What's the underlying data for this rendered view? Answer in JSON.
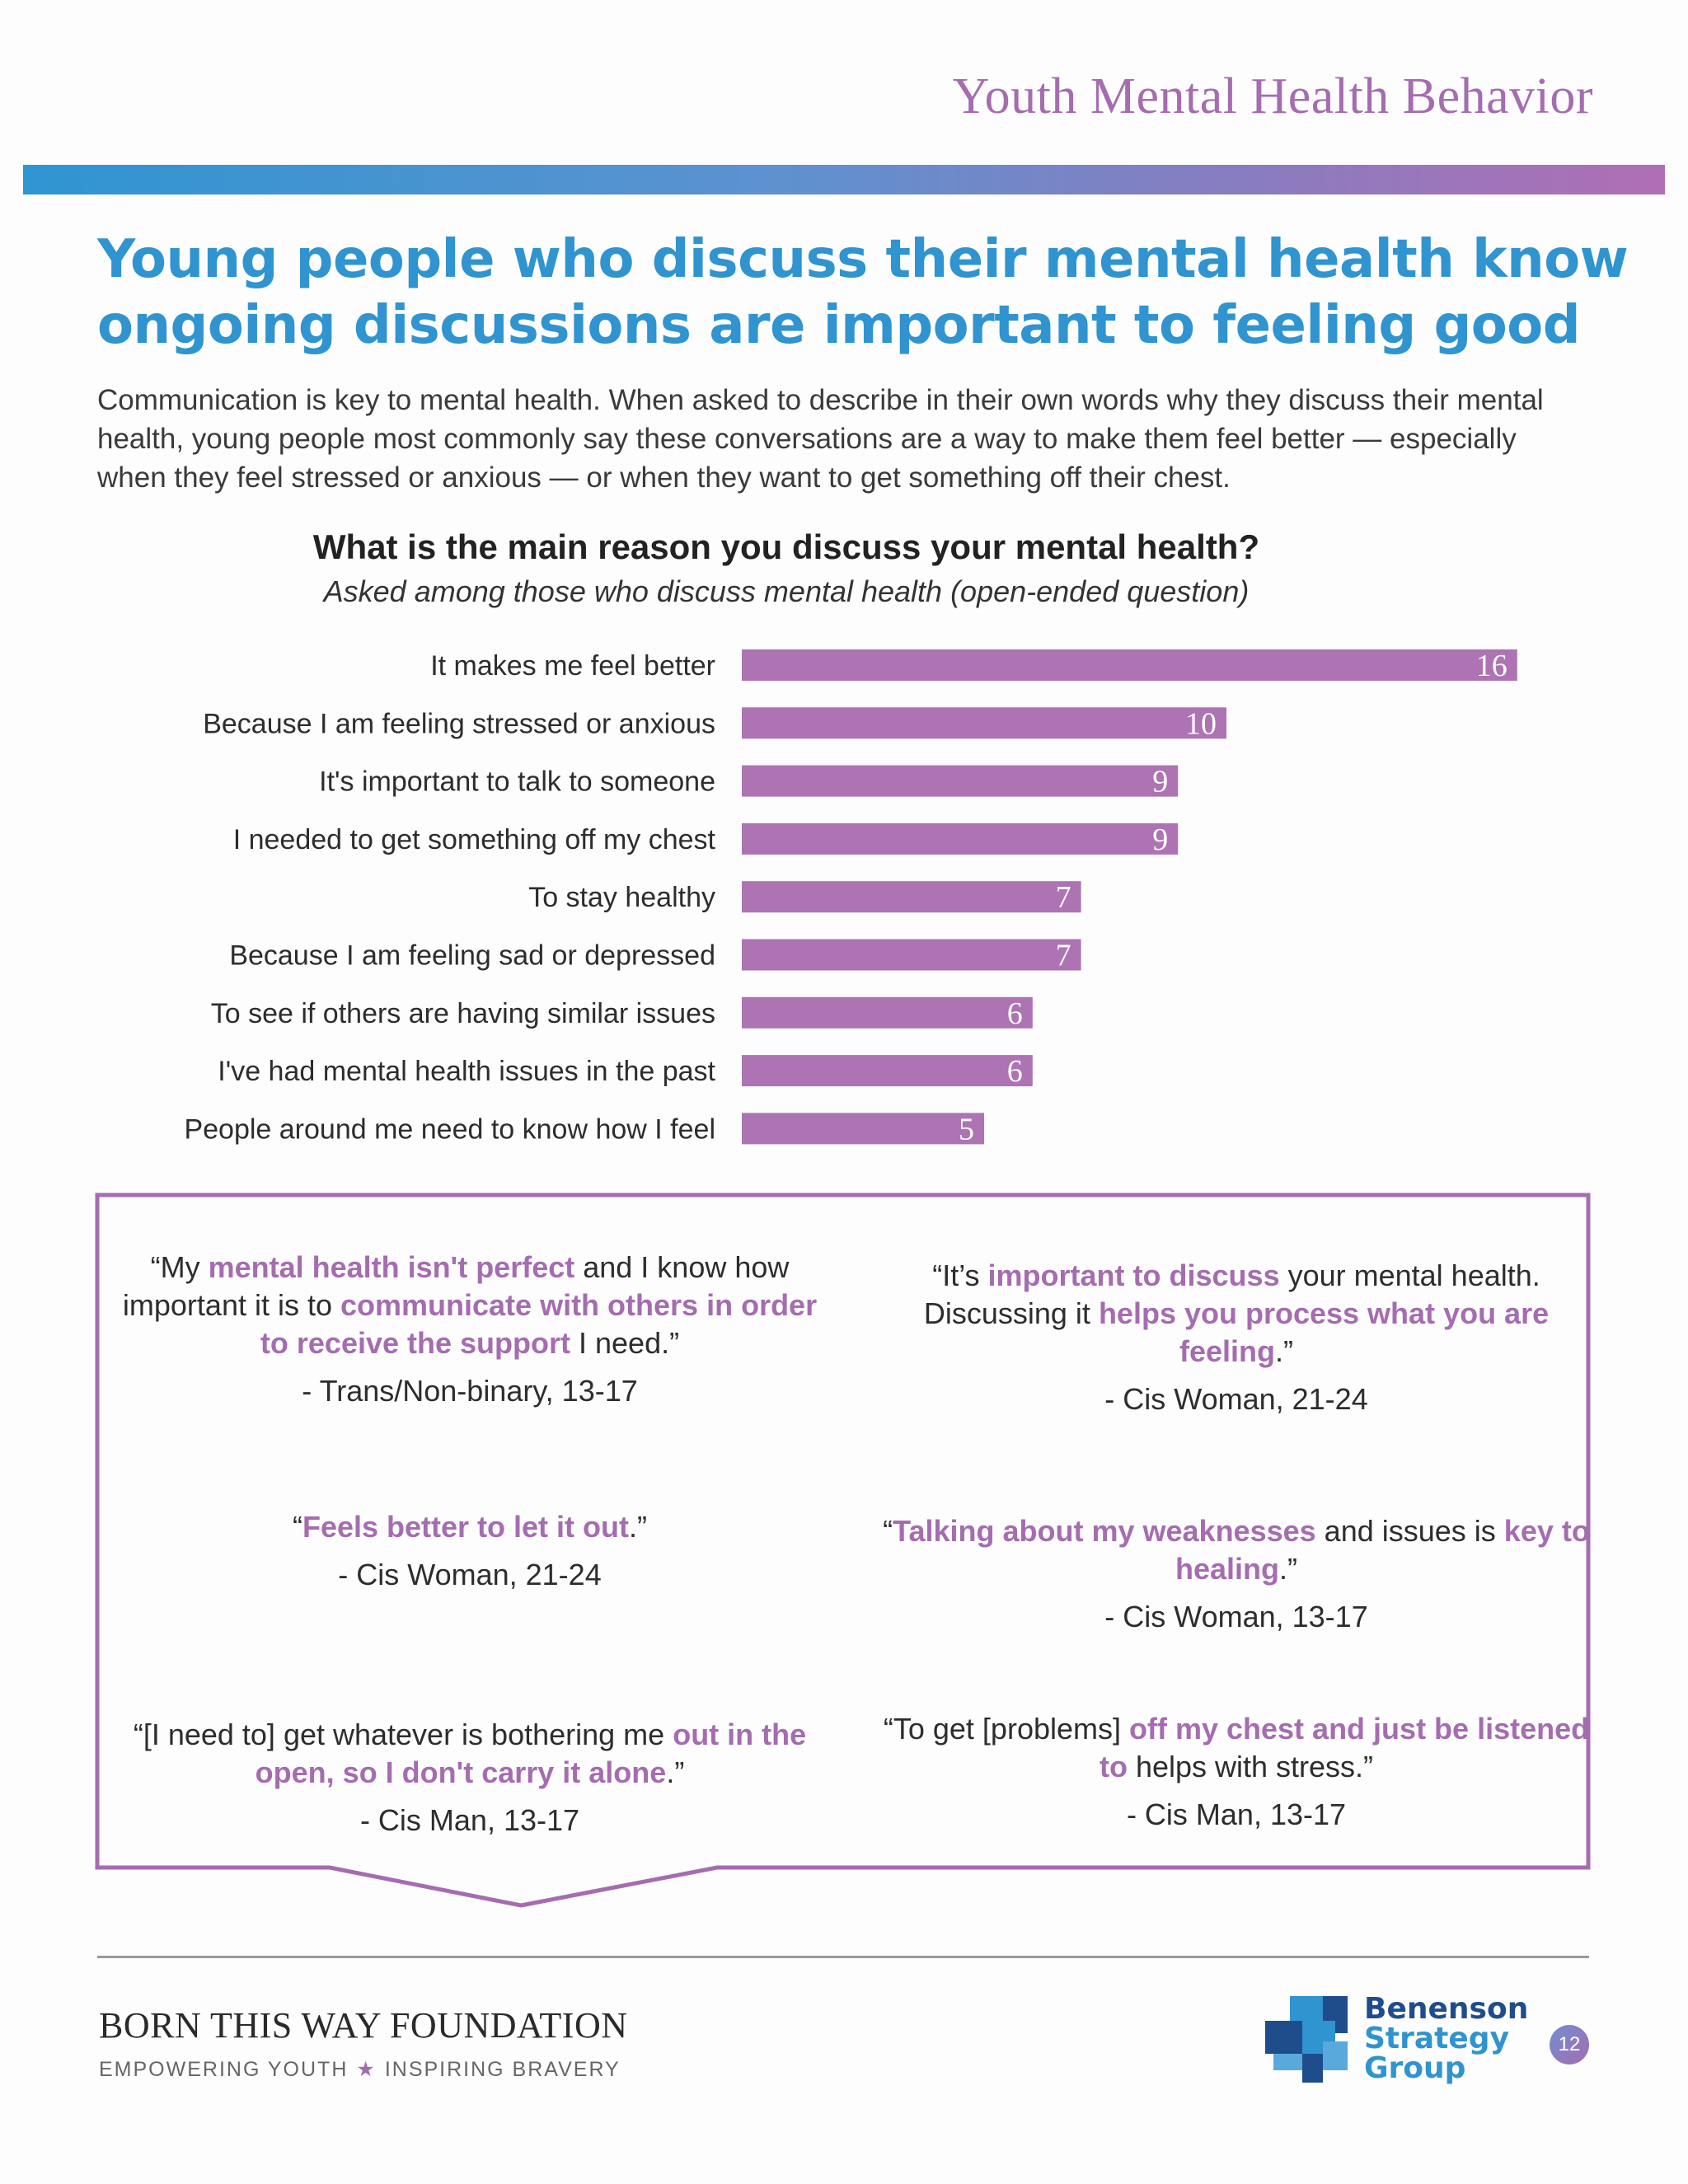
{
  "header": {
    "title": "Youth Mental Health Behavior"
  },
  "headline": "Young people who discuss their mental health know ongoing discussions are important to feeling good",
  "intro": "Communication is key to mental health. When asked to describe in their own words why they discuss their mental health, young people most commonly say these conversations are a way to make them feel better — especially when they feel stressed or anxious — or when they want to get something off their chest.",
  "chart_data": {
    "type": "bar",
    "orientation": "horizontal",
    "title": "What is the main reason you discuss your mental health?",
    "subtitle": "Asked among those who discuss mental health  (open-ended question)",
    "categories": [
      "It makes me feel better",
      "Because I am feeling stressed or anxious",
      "It's important to talk to someone",
      "I needed to get something off my chest",
      "To stay healthy",
      "Because I am feeling sad or depressed",
      "To see if others are having similar issues",
      "I've had mental health issues in the past",
      "People around me need to know how I feel"
    ],
    "values": [
      16,
      10,
      9,
      9,
      7,
      7,
      6,
      6,
      5
    ],
    "xlim": [
      0,
      16
    ],
    "bar_color": "#ad73b3",
    "grid": false
  },
  "quotes": [
    {
      "parts": [
        {
          "t": "“My ",
          "h": false
        },
        {
          "t": "mental health isn't perfect",
          "h": true
        },
        {
          "t": " and I know how important it is to ",
          "h": false
        },
        {
          "t": "communicate with others in order to receive the support",
          "h": true
        },
        {
          "t": " I need.”",
          "h": false
        }
      ],
      "attribution": "- Trans/Non-binary, 13-17"
    },
    {
      "parts": [
        {
          "t": "“It’s ",
          "h": false
        },
        {
          "t": "important to discuss",
          "h": true
        },
        {
          "t": " your mental health. Discussing it ",
          "h": false
        },
        {
          "t": "helps you process what you are feeling",
          "h": true
        },
        {
          "t": ".”",
          "h": false
        }
      ],
      "attribution": "- Cis Woman, 21-24"
    },
    {
      "parts": [
        {
          "t": "“",
          "h": false
        },
        {
          "t": "Feels better to let it out",
          "h": true
        },
        {
          "t": ".”",
          "h": false
        }
      ],
      "attribution": "- Cis Woman, 21-24"
    },
    {
      "parts": [
        {
          "t": "“",
          "h": false
        },
        {
          "t": "Talking about my weaknesses",
          "h": true
        },
        {
          "t": " and issues is ",
          "h": false
        },
        {
          "t": "key to healing",
          "h": true
        },
        {
          "t": ".”",
          "h": false
        }
      ],
      "attribution": "- Cis Woman, 13-17"
    },
    {
      "parts": [
        {
          "t": "“[I need to] get whatever is bothering me ",
          "h": false
        },
        {
          "t": "out in the open, so I don't carry it alone",
          "h": true
        },
        {
          "t": ".”",
          "h": false
        }
      ],
      "attribution": "- Cis Man, 13-17"
    },
    {
      "parts": [
        {
          "t": "“To get [problems] ",
          "h": false
        },
        {
          "t": "off my chest and just be listened to",
          "h": true
        },
        {
          "t": " helps with stress.”",
          "h": false
        }
      ],
      "attribution": "- Cis Man, 13-17"
    }
  ],
  "footer": {
    "org_name": "BORN THIS WAY FOUNDATION",
    "tagline_left": "EMPOWERING YOUTH",
    "tagline_star": "★",
    "tagline_right": "INSPIRING BRAVERY",
    "partner_line1": "Benenson",
    "partner_line2": "Strategy",
    "partner_line3": "Group",
    "page_number": "12"
  },
  "colors": {
    "accent_purple": "#a56cb0",
    "accent_blue": "#2f94cf",
    "bar": "#ad73b3"
  }
}
